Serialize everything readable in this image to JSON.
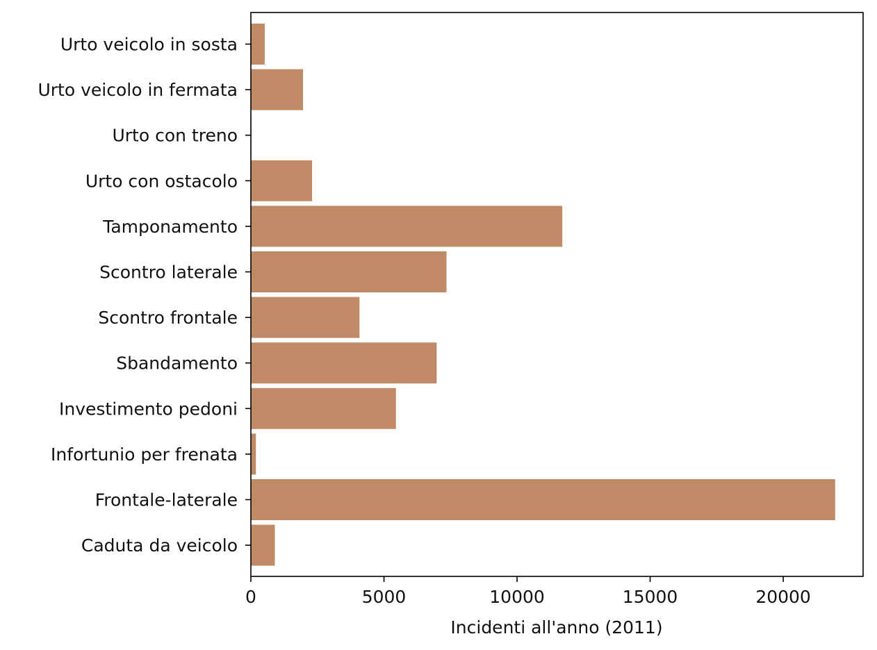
{
  "chart_data": {
    "type": "bar",
    "orientation": "horizontal",
    "title": "",
    "xlabel": "Incidenti all'anno (2011)",
    "ylabel": "",
    "xlim": [
      0,
      23000
    ],
    "xticks": [
      0,
      5000,
      10000,
      15000,
      20000
    ],
    "xtick_labels": [
      "0",
      "5000",
      "10000",
      "15000",
      "20000"
    ],
    "categories": [
      "Urto veicolo in sosta",
      "Urto veicolo in fermata",
      "Urto con treno",
      "Urto con ostacolo",
      "Tamponamento",
      "Scontro laterale",
      "Scontro frontale",
      "Sbandamento",
      "Investimento pedoni",
      "Infortunio per frenata",
      "Frontale-laterale",
      "Caduta da veicolo"
    ],
    "values": [
      520,
      1960,
      20,
      2300,
      11700,
      7350,
      4080,
      6980,
      5450,
      190,
      21950,
      900
    ],
    "bar_color": "#bf8a65",
    "grid": false,
    "legend": "none"
  }
}
